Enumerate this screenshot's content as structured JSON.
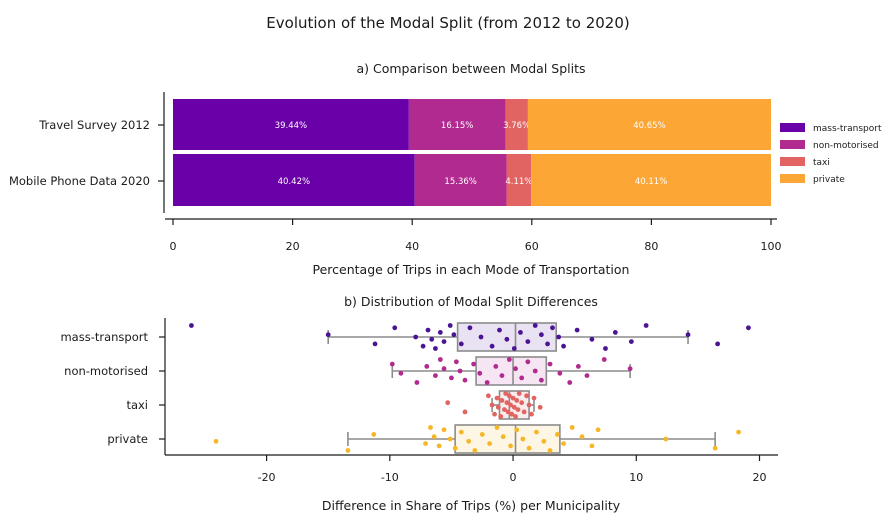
{
  "chart_data": [
    {
      "type": "bar",
      "orientation": "horizontal",
      "stacked": true,
      "suptitle": "Evolution of the Modal Split (from 2012 to 2020)",
      "title": "a) Comparison between Modal Splits",
      "xlabel": "Percentage of Trips in each Mode of Transportation",
      "xlim": [
        0,
        100
      ],
      "xticks": [
        "0",
        "20",
        "40",
        "60",
        "80",
        "100"
      ],
      "categories": [
        "Travel Survey 2012",
        "Mobile Phone Data 2020"
      ],
      "series": [
        {
          "name": "mass-transport",
          "color": "#6a00a8",
          "values": [
            39.44,
            40.42
          ],
          "labels": [
            "39.44%",
            "40.42%"
          ]
        },
        {
          "name": "non-motorised",
          "color": "#b12a90",
          "values": [
            16.15,
            15.36
          ],
          "labels": [
            "16.15%",
            "15.36%"
          ]
        },
        {
          "name": "taxi",
          "color": "#e16462",
          "values": [
            3.76,
            4.11
          ],
          "labels": [
            "3.76%",
            "4.11%"
          ]
        },
        {
          "name": "private",
          "color": "#fca636",
          "values": [
            40.65,
            40.11
          ],
          "labels": [
            "40.65%",
            "40.11%"
          ]
        }
      ],
      "legend": "right"
    },
    {
      "type": "boxplot+strip",
      "orientation": "horizontal",
      "title": "b) Distribution of Modal Split Differences",
      "xlabel": "Difference in Share of Trips (%) per Municipality",
      "xlim": [
        -28,
        21.5
      ],
      "xticks": [
        "-20",
        "-10",
        "0",
        "10",
        "20"
      ],
      "tick_values": [
        -20,
        -10,
        0,
        10,
        20
      ],
      "categories": [
        "mass-transport",
        "non-motorised",
        "taxi",
        "private"
      ],
      "colors": [
        "#4b1495",
        "#b12a90",
        "#e16462",
        "#f5b727"
      ],
      "boxes": [
        {
          "q1": -4.5,
          "median": 0.2,
          "q3": 3.5,
          "whislo": -15.0,
          "whishi": 14.2
        },
        {
          "q1": -3.0,
          "median": 0.0,
          "q3": 2.7,
          "whislo": -9.8,
          "whishi": 9.5
        },
        {
          "q1": -1.1,
          "median": -0.3,
          "q3": 1.3,
          "whislo": -1.7,
          "whishi": 1.7
        },
        {
          "q1": -4.7,
          "median": 0.2,
          "q3": 3.8,
          "whislo": -13.4,
          "whishi": 16.4
        }
      ],
      "points": [
        [
          -26.1,
          -15.0,
          -11.2,
          -9.6,
          -7.9,
          -7.3,
          -6.9,
          -6.6,
          -6.3,
          -5.9,
          -5.6,
          -5.1,
          -4.8,
          -4.2,
          -3.5,
          -2.6,
          -1.7,
          -1.1,
          -0.5,
          0.1,
          0.6,
          1.2,
          1.8,
          2.3,
          2.8,
          3.2,
          3.7,
          4.1,
          5.2,
          6.4,
          7.5,
          8.3,
          9.6,
          10.8,
          14.2,
          16.6,
          19.1
        ],
        [
          -9.8,
          -9.1,
          -7.8,
          -7.0,
          -6.3,
          -5.9,
          -5.6,
          -5.0,
          -4.6,
          -4.3,
          -3.9,
          -3.2,
          -2.7,
          -2.1,
          -1.4,
          -0.9,
          -0.3,
          0.2,
          0.7,
          1.2,
          1.8,
          2.3,
          3.0,
          3.8,
          4.6,
          5.3,
          6.0,
          7.4,
          9.5
        ],
        [
          -5.3,
          -3.9,
          -2.0,
          -1.7,
          -1.5,
          -1.3,
          -1.2,
          -1.0,
          -0.9,
          -0.7,
          -0.6,
          -0.5,
          -0.4,
          -0.3,
          -0.2,
          -0.1,
          0.0,
          0.1,
          0.2,
          0.3,
          0.4,
          0.5,
          0.7,
          0.9,
          1.1,
          1.3,
          1.5,
          1.7,
          2.2
        ],
        [
          -24.1,
          -13.4,
          -11.3,
          -7.1,
          -6.7,
          -6.4,
          -6.0,
          -5.6,
          -5.1,
          -4.7,
          -4.2,
          -3.6,
          -3.1,
          -2.5,
          -1.9,
          -1.3,
          -0.8,
          -0.2,
          0.3,
          0.8,
          1.3,
          1.9,
          2.5,
          3.0,
          3.6,
          4.1,
          4.8,
          5.6,
          6.4,
          6.9,
          12.4,
          16.4,
          18.3
        ]
      ]
    }
  ]
}
